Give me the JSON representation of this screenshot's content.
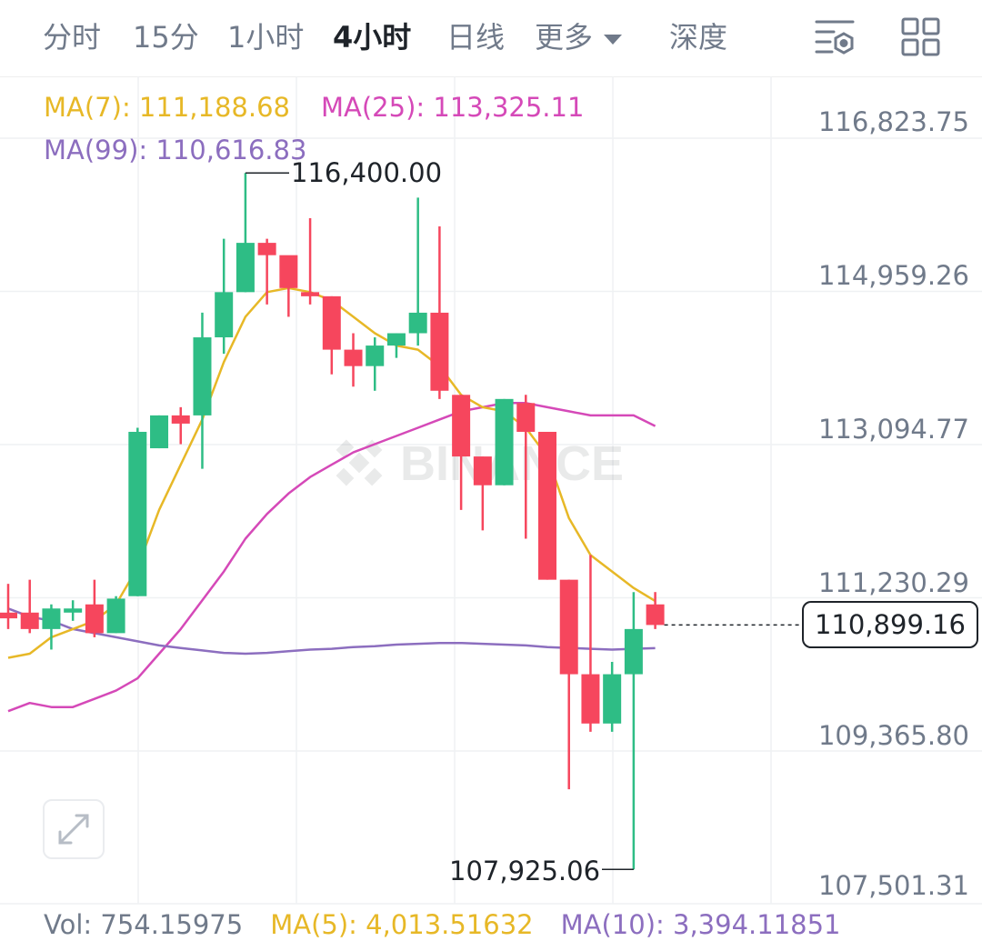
{
  "tabs": [
    {
      "label": "分时",
      "active": false
    },
    {
      "label": "15分",
      "active": false
    },
    {
      "label": "1小时",
      "active": false
    },
    {
      "label": "4小时",
      "active": true
    },
    {
      "label": "日线",
      "active": false
    },
    {
      "label": "更多",
      "active": false
    },
    {
      "label": "深度",
      "active": false
    }
  ],
  "toolbar_icons": [
    "chart-settings-icon",
    "grid-layout-icon"
  ],
  "indicators": {
    "ma7": "MA(7): 111,188.68",
    "ma25": "MA(25): 113,325.11",
    "ma99": "MA(99): 110,616.83"
  },
  "price_axis": [
    "116,823.75",
    "114,959.26",
    "113,094.77",
    "111,230.29",
    "109,365.80",
    "107,501.31"
  ],
  "current_price": "110,899.16",
  "high_label": "116,400.00",
  "low_label": "107,925.06",
  "watermark": "BINANCE",
  "volume": {
    "vol": "Vol: 754.15975",
    "ma5": "MA(5): 4,013.51632",
    "ma10": "MA(10): 3,394.11851"
  },
  "colors": {
    "up": "#2ebd85",
    "down": "#f6465d",
    "ma7": "#e7b827",
    "ma25": "#d549b8",
    "ma99": "#8c6ebf",
    "text_secondary": "#707a8a",
    "text_primary": "#1e2329"
  },
  "chart_data": {
    "type": "candlestick",
    "interval": "4小时",
    "y_axis_ticks": [
      116823.75,
      114959.26,
      113094.77,
      111230.29,
      109365.8,
      107501.31
    ],
    "candles": [
      {
        "open": 111050,
        "high": 111400,
        "low": 110850,
        "close": 110980
      },
      {
        "open": 111050,
        "high": 111450,
        "low": 110800,
        "close": 110850
      },
      {
        "open": 110850,
        "high": 111150,
        "low": 110600,
        "close": 111100
      },
      {
        "open": 111050,
        "high": 111200,
        "low": 110950,
        "close": 111100
      },
      {
        "open": 111150,
        "high": 111450,
        "low": 110750,
        "close": 110800
      },
      {
        "open": 110800,
        "high": 111250,
        "low": 110800,
        "close": 111220
      },
      {
        "open": 111250,
        "high": 113300,
        "low": 111250,
        "close": 113250
      },
      {
        "open": 113050,
        "high": 113450,
        "low": 113050,
        "close": 113450
      },
      {
        "open": 113450,
        "high": 113550,
        "low": 113100,
        "close": 113350
      },
      {
        "open": 113450,
        "high": 114700,
        "low": 112800,
        "close": 114400
      },
      {
        "open": 114400,
        "high": 115600,
        "low": 114200,
        "close": 114950
      },
      {
        "open": 114950,
        "high": 116400,
        "low": 114950,
        "close": 115550
      },
      {
        "open": 115550,
        "high": 115600,
        "low": 114800,
        "close": 115400
      },
      {
        "open": 115400,
        "high": 115350,
        "low": 114650,
        "close": 115000
      },
      {
        "open": 114950,
        "high": 115850,
        "low": 114800,
        "close": 114900
      },
      {
        "open": 114900,
        "high": 114900,
        "low": 113950,
        "close": 114250
      },
      {
        "open": 114250,
        "high": 114450,
        "low": 113800,
        "close": 114050
      },
      {
        "open": 114050,
        "high": 114400,
        "low": 113750,
        "close": 114300
      },
      {
        "open": 114300,
        "high": 114450,
        "low": 114150,
        "close": 114450
      },
      {
        "open": 114450,
        "high": 116100,
        "low": 114300,
        "close": 114700
      },
      {
        "open": 114700,
        "high": 115750,
        "low": 113650,
        "close": 113750
      },
      {
        "open": 113700,
        "high": 113700,
        "low": 112300,
        "close": 112950
      },
      {
        "open": 112950,
        "high": 112950,
        "low": 112050,
        "close": 112600
      },
      {
        "open": 112600,
        "high": 113650,
        "low": 112600,
        "close": 113650
      },
      {
        "open": 113600,
        "high": 113700,
        "low": 111950,
        "close": 113250
      },
      {
        "open": 113250,
        "high": 113250,
        "low": 111450,
        "close": 111450
      },
      {
        "open": 111450,
        "high": 111450,
        "low": 108900,
        "close": 110300
      },
      {
        "open": 110300,
        "high": 111750,
        "low": 109600,
        "close": 109700
      },
      {
        "open": 109700,
        "high": 110450,
        "low": 109600,
        "close": 110300
      },
      {
        "open": 110300,
        "high": 111300,
        "low": 107925,
        "close": 110850
      },
      {
        "open": 111150,
        "high": 111300,
        "low": 110850,
        "close": 110899.16
      }
    ],
    "ma7": [
      110500,
      110550,
      110750,
      110850,
      110950,
      111150,
      111600,
      112300,
      112850,
      113400,
      114100,
      114650,
      114950,
      115000,
      114950,
      114850,
      114650,
      114450,
      114300,
      114250,
      114050,
      113700,
      113550,
      113500,
      113300,
      112950,
      112200,
      111750,
      111550,
      111350,
      111190
    ],
    "ma25": [
      109850,
      109950,
      109900,
      109900,
      110000,
      110100,
      110250,
      110550,
      110850,
      111200,
      111550,
      111950,
      112250,
      112500,
      112700,
      112850,
      113000,
      113100,
      113200,
      113300,
      113400,
      113500,
      113550,
      113600,
      113600,
      113550,
      113500,
      113450,
      113450,
      113450,
      113320
    ],
    "ma99": [
      111100,
      111000,
      110950,
      110850,
      110800,
      110750,
      110700,
      110650,
      110620,
      110590,
      110560,
      110550,
      110560,
      110580,
      110600,
      110610,
      110630,
      110640,
      110660,
      110670,
      110680,
      110680,
      110670,
      110660,
      110650,
      110630,
      110620,
      110610,
      110600,
      110610,
      110617
    ]
  }
}
